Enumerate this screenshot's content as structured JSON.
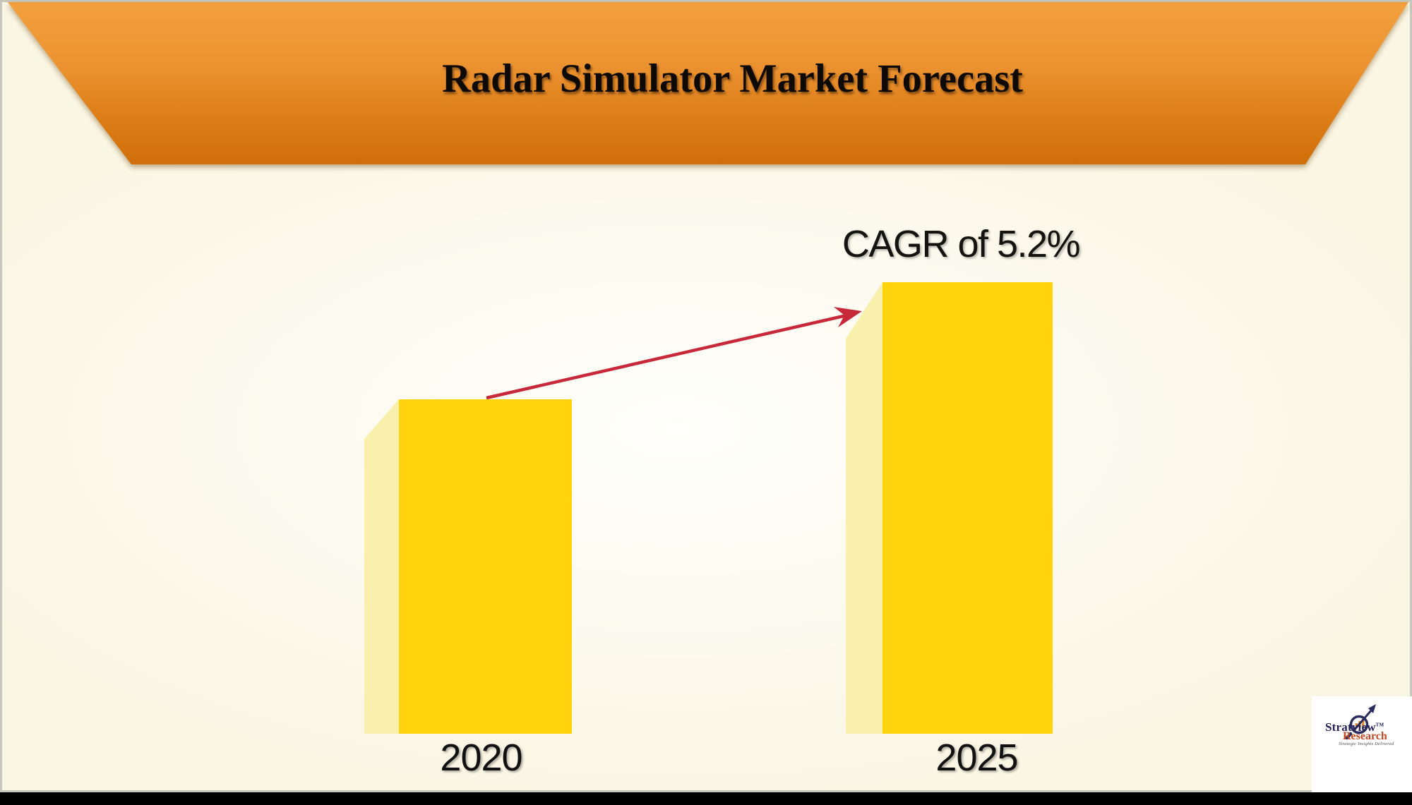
{
  "banner": {
    "title": "Radar Simulator Market Forecast"
  },
  "chart_data": {
    "type": "bar",
    "title": "Radar Simulator Market Forecast",
    "categories": [
      "2020",
      "2025"
    ],
    "values": [
      100,
      135
    ],
    "value_basis": "relative index estimated from bar heights; no value axis shown",
    "annotation": "CAGR of 5.2%",
    "xlabel": "",
    "ylabel": "",
    "axes": "none (pictorial 3D bars, year labels only)",
    "legend_position": "none",
    "grid": false,
    "bar_color": "#FFD30D",
    "bar_side_color": "#F8F0AC"
  },
  "annotation": {
    "cagr_label": "CAGR of 5.2%"
  },
  "logo": {
    "brand": "Stratview",
    "trademark": "TM",
    "brand_line2": "Research",
    "tagline": "Strategic Insights Delivered"
  },
  "icons": {
    "growth_arrow": "red straight trend arrow from 2020 bar to 2025 bar",
    "logo_magnifier": "magnifying glass over mini bar chart with rising arrow"
  },
  "colors": {
    "background": "#FBF8E9",
    "banner_gradient_top": "#F2A03F",
    "banner_gradient_bottom": "#D06F0A",
    "bar": "#FFD30D",
    "bar_side": "#F8F0AC",
    "arrow": "#C8293A",
    "title_text": "#0D0A06",
    "logo_navy": "#23235A",
    "logo_red": "#C54A24",
    "bottom_strip": "#000000"
  }
}
